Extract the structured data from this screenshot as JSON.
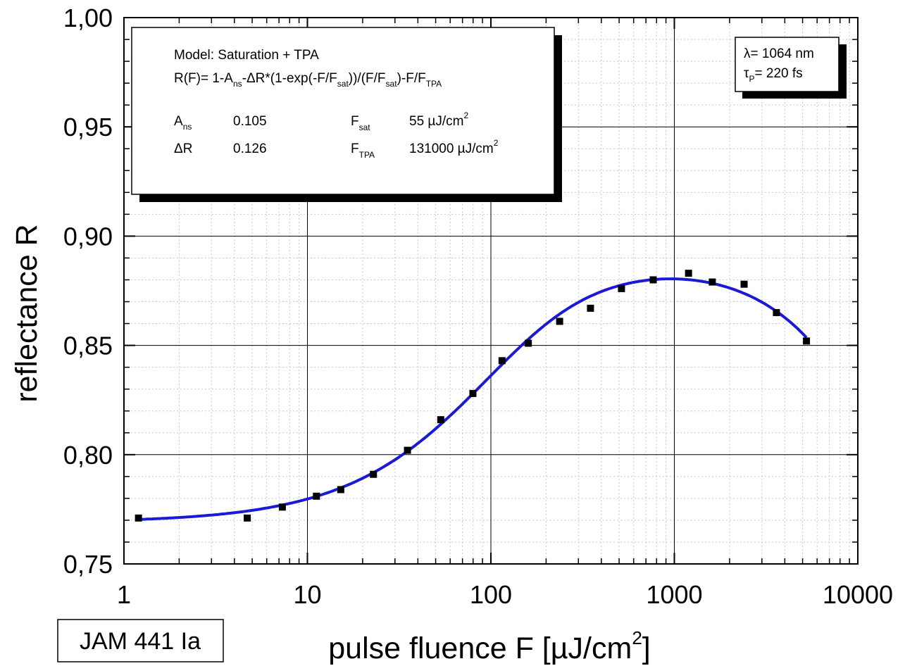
{
  "chart_data": {
    "type": "scatter",
    "xlabel": "pulse fluence F [µJ/cm",
    "xlabel_sup": "2",
    "xlabel_close": "]",
    "ylabel": "reflectance R",
    "x_scale": "log",
    "xlim": [
      1,
      10000
    ],
    "ylim": [
      0.75,
      1.0
    ],
    "x_ticks": [
      1,
      10,
      100,
      1000,
      10000
    ],
    "x_tick_labels": [
      "1",
      "10",
      "100",
      "1000",
      "10000"
    ],
    "y_ticks": [
      0.75,
      0.8,
      0.85,
      0.9,
      0.95,
      1.0
    ],
    "y_tick_labels": [
      "0,75",
      "0,80",
      "0,85",
      "0,90",
      "0,95",
      "1,00"
    ],
    "grid": true,
    "colors": {
      "data": "#000000",
      "fit": "#1a1ad6"
    },
    "series": [
      {
        "kind": "points",
        "x": [
          1.2,
          4.7,
          7.3,
          11.2,
          15.2,
          22.9,
          35.1,
          53.3,
          79.8,
          115,
          160,
          237,
          349,
          515,
          767,
          1195,
          1610,
          2400,
          3600,
          5250
        ],
        "y": [
          0.771,
          0.771,
          0.776,
          0.781,
          0.784,
          0.791,
          0.802,
          0.816,
          0.828,
          0.843,
          0.851,
          0.861,
          0.867,
          0.876,
          0.88,
          0.883,
          0.879,
          0.878,
          0.865,
          0.852
        ]
      },
      {
        "kind": "fit",
        "model": "R(F)= 1-Ans-ΔR*(1-exp(-F/Fsat))/(F/Fsat)-F/FTPA",
        "params": {
          "A_ns": 0.105,
          "dR": 0.126,
          "F_sat": 55,
          "F_TPA": 131000
        },
        "x_range": [
          1.2,
          5250
        ]
      }
    ]
  },
  "model_box": {
    "title": "Model: Saturation + TPA",
    "formula": {
      "p1": "R(F)= 1-A",
      "s1": "ns",
      "p2": "-ΔR*(1-exp(-F/F",
      "s2": "sat",
      "p3": "))/(F/F",
      "s3": "sat",
      "p4": ")-F/F",
      "s4": "TPA"
    },
    "params": [
      {
        "name": "A",
        "sub": "ns",
        "value": "0.105"
      },
      {
        "name": "ΔR",
        "sub": "",
        "value": "0.126"
      },
      {
        "name": "F",
        "sub": "sat",
        "value": "55 µJ/cm",
        "sup": "2"
      },
      {
        "name": "F",
        "sub": "TPA",
        "value": "131000 µJ/cm",
        "sup": "2"
      }
    ]
  },
  "info_box": {
    "lambda": "λ= 1064 nm",
    "tau_sym": "τ",
    "tau_sub": "P",
    "tau_val": "= 220 fs"
  },
  "sample_label": "JAM 441 Ia"
}
